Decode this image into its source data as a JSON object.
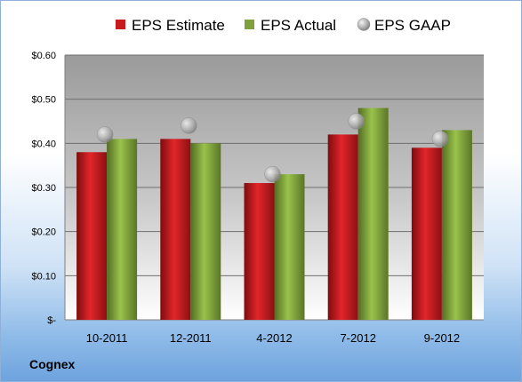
{
  "chart_data": {
    "type": "bar",
    "categories": [
      "10-2011",
      "12-2011",
      "4-2012",
      "7-2012",
      "9-2012"
    ],
    "series": [
      {
        "name": "EPS Estimate",
        "type": "bar",
        "color": "#c8191d",
        "values": [
          0.38,
          0.41,
          0.31,
          0.42,
          0.39
        ]
      },
      {
        "name": "EPS Actual",
        "type": "bar",
        "color": "#7fa03c",
        "values": [
          0.41,
          0.4,
          0.33,
          0.48,
          0.43
        ]
      },
      {
        "name": "EPS GAAP",
        "type": "marker",
        "color": "#a9a9a9",
        "values": [
          0.42,
          0.44,
          0.33,
          0.45,
          0.41
        ]
      }
    ],
    "ylim": [
      0,
      0.6
    ],
    "yticks": [
      0,
      0.1,
      0.2,
      0.3,
      0.4,
      0.5,
      0.6
    ],
    "ytick_labels": [
      "$-",
      "$0.10",
      "$0.20",
      "$0.30",
      "$0.40",
      "$0.50",
      "$0.60"
    ],
    "grid": true,
    "legend_position": "top"
  },
  "company": "Cognex"
}
